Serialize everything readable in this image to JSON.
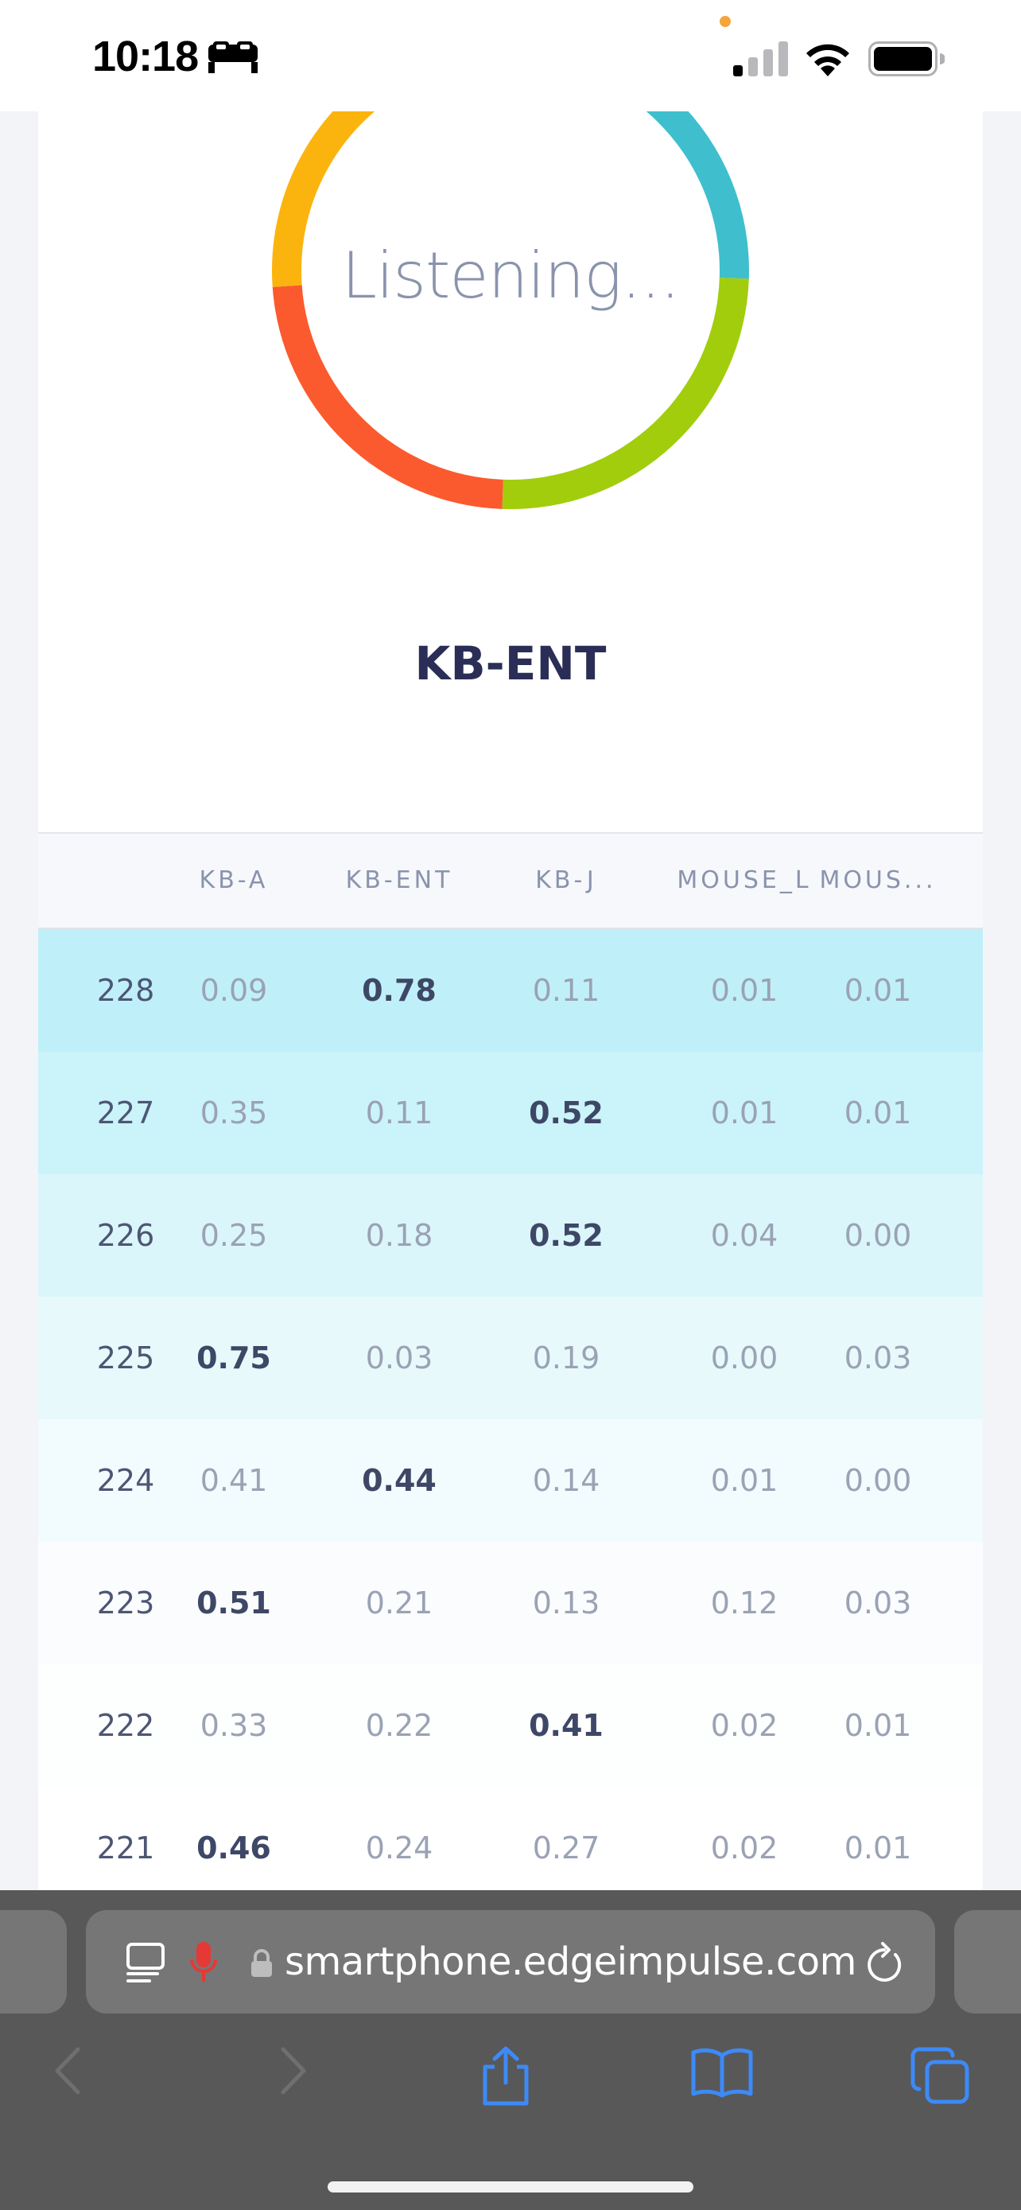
{
  "status_bar": {
    "time": "10:18"
  },
  "classifier": {
    "status": "Listening...",
    "top_class": "KB-ENT",
    "colors": {
      "yellow": "#fbb40e",
      "cyan": "#3fbfcd",
      "green": "#a2cd0d",
      "orange": "#fb5a2e"
    }
  },
  "table": {
    "columns": [
      "",
      "KB-A",
      "KB-ENT",
      "KB-J",
      "MOUSE_L",
      "MOUS..."
    ],
    "rows": [
      {
        "id": "228",
        "values": [
          "0.09",
          "0.78",
          "0.11",
          "0.01",
          "0.01"
        ],
        "max": 1,
        "bg": "#bff0fa"
      },
      {
        "id": "227",
        "values": [
          "0.35",
          "0.11",
          "0.52",
          "0.01",
          "0.01"
        ],
        "max": 2,
        "bg": "#cbf3fa"
      },
      {
        "id": "226",
        "values": [
          "0.25",
          "0.18",
          "0.52",
          "0.04",
          "0.00"
        ],
        "max": 2,
        "bg": "#dbf6fb"
      },
      {
        "id": "225",
        "values": [
          "0.75",
          "0.03",
          "0.19",
          "0.00",
          "0.03"
        ],
        "max": 0,
        "bg": "#e8f9fc"
      },
      {
        "id": "224",
        "values": [
          "0.41",
          "0.44",
          "0.14",
          "0.01",
          "0.00"
        ],
        "max": 1,
        "bg": "#f2fbfd"
      },
      {
        "id": "223",
        "values": [
          "0.51",
          "0.21",
          "0.13",
          "0.12",
          "0.03"
        ],
        "max": 0,
        "bg": "#fafcfe"
      },
      {
        "id": "222",
        "values": [
          "0.33",
          "0.22",
          "0.41",
          "0.02",
          "0.01"
        ],
        "max": 2,
        "bg": "#fdfefe"
      },
      {
        "id": "221",
        "values": [
          "0.46",
          "0.24",
          "0.27",
          "0.02",
          "0.01"
        ],
        "max": 0,
        "bg": "#ffffff"
      }
    ]
  },
  "browser": {
    "url_prefix": "smartphone.edgeimpulse.com",
    "icons": [
      "reader-icon",
      "microphone-icon",
      "lock-icon",
      "reload-icon",
      "back-icon",
      "forward-icon",
      "share-icon",
      "bookmarks-icon",
      "tabs-icon"
    ]
  }
}
